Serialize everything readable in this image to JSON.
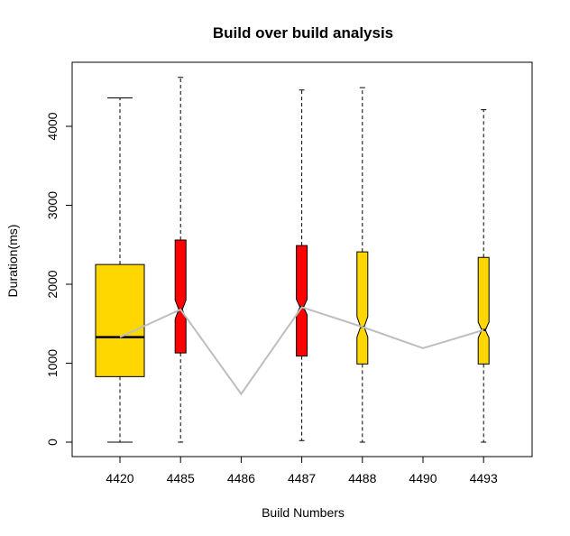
{
  "chart_data": {
    "type": "boxplot",
    "title": "Build over build analysis",
    "xlabel": "Build Numbers",
    "ylabel": "Duration(ms)",
    "categories": [
      "4420",
      "4485",
      "4486",
      "4487",
      "4488",
      "4490",
      "4493"
    ],
    "yticks": [
      0,
      1000,
      2000,
      3000,
      4000
    ],
    "ylim": [
      -200,
      4800
    ],
    "boxes": [
      {
        "build": "4420",
        "min": 0,
        "q1": 830,
        "median": 1330,
        "q3": 2250,
        "max": 4360,
        "notch_low": 1300,
        "notch_high": 1360,
        "color": "#FFD700",
        "width": "wide"
      },
      {
        "build": "4485",
        "min": 0,
        "q1": 1130,
        "median": 1680,
        "q3": 2560,
        "max": 4620,
        "notch_low": 1560,
        "notch_high": 1800,
        "color": "#FF0000",
        "width": "narrow"
      },
      {
        "build": "4486",
        "min": null,
        "q1": null,
        "median": 610,
        "q3": null,
        "max": null,
        "notch_low": null,
        "notch_high": null,
        "color": "#FFD700",
        "width": "none"
      },
      {
        "build": "4487",
        "min": 20,
        "q1": 1090,
        "median": 1710,
        "q3": 2490,
        "max": 4460,
        "notch_low": 1610,
        "notch_high": 1810,
        "color": "#FF0000",
        "width": "narrow"
      },
      {
        "build": "4488",
        "min": 0,
        "q1": 990,
        "median": 1460,
        "q3": 2410,
        "max": 4490,
        "notch_low": 1330,
        "notch_high": 1590,
        "color": "#FFD700",
        "width": "narrow"
      },
      {
        "build": "4490",
        "min": null,
        "q1": null,
        "median": 1190,
        "q3": null,
        "max": null,
        "notch_low": null,
        "notch_high": null,
        "color": "#FFD700",
        "width": "none"
      },
      {
        "build": "4493",
        "min": 0,
        "q1": 990,
        "median": 1420,
        "q3": 2340,
        "max": 4210,
        "notch_low": 1320,
        "notch_high": 1520,
        "color": "#FFD700",
        "width": "narrow"
      }
    ],
    "median_trend": {
      "color": "#BEBEBE",
      "values": [
        1330,
        1680,
        610,
        1710,
        1460,
        1190,
        1420
      ]
    },
    "grid": false,
    "legend": "none"
  }
}
